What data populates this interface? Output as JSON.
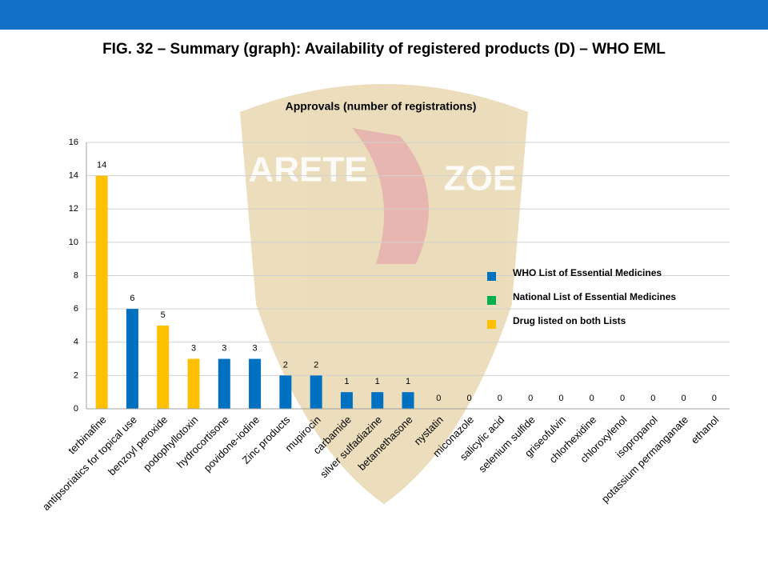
{
  "heading": "FIG. 32 – Summary (graph): Availability of registered products (D) – WHO EML",
  "watermark": [
    "ARETE",
    "ZOE"
  ],
  "chart_data": {
    "type": "bar",
    "title": "Approvals (number of registrations)",
    "categories": [
      "terbinafine",
      "antipsoriatics for topical use",
      "benzoyl peroxide",
      "podophyllotoxin",
      "hydrocortisone",
      "povidone-iodine",
      "Zinc products",
      "mupirocin",
      "carbamide",
      "silver sulfadiazine",
      "betamethasone",
      "nystatin",
      "miconazole",
      "salicylic acid",
      "selenium sulfide",
      "griseofulvin",
      "chlorhexidine",
      "chloroxylenol",
      "isopropanol",
      "potassium permanganate",
      "ethanol"
    ],
    "series": [
      {
        "name": "WHO List of Essential Medicines",
        "color": "#0070c0",
        "values": [
          null,
          6,
          null,
          null,
          3,
          3,
          2,
          2,
          1,
          1,
          1,
          0,
          0,
          0,
          0,
          0,
          0,
          0,
          0,
          0,
          0
        ]
      },
      {
        "name": "National List of Essential Medicines",
        "color": "#00b050",
        "values": [
          null,
          null,
          null,
          null,
          null,
          null,
          null,
          null,
          null,
          null,
          null,
          null,
          null,
          null,
          null,
          null,
          null,
          null,
          null,
          null,
          null
        ]
      },
      {
        "name": "Drug listed on both Lists",
        "color": "#ffc000",
        "values": [
          14,
          null,
          5,
          3,
          null,
          null,
          null,
          null,
          null,
          null,
          null,
          null,
          null,
          null,
          null,
          null,
          null,
          null,
          null,
          null,
          null
        ]
      }
    ],
    "ylim": [
      0,
      16
    ],
    "yticks": [
      0,
      2,
      4,
      6,
      8,
      10,
      12,
      14,
      16
    ],
    "grid": true,
    "legend": "right"
  }
}
